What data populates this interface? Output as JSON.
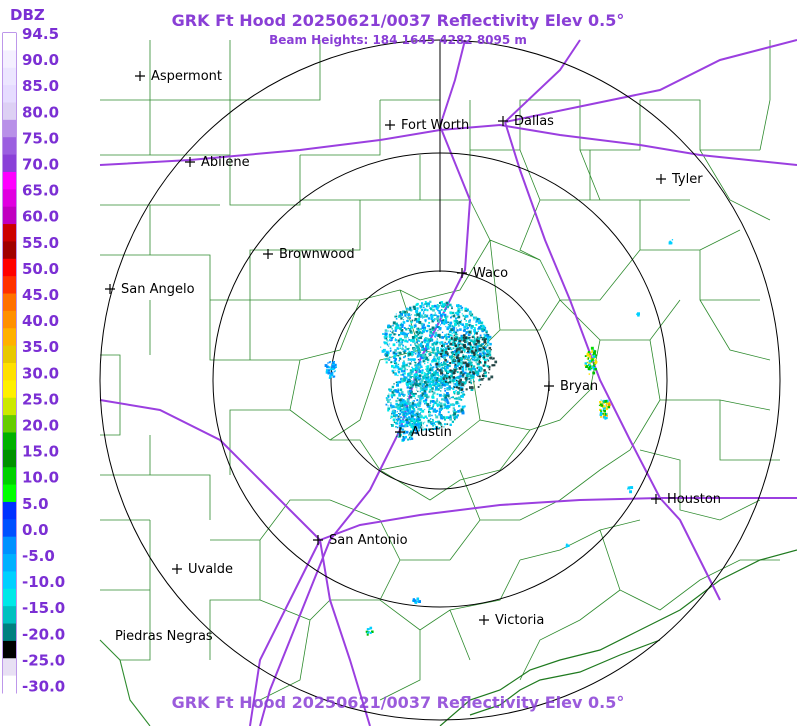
{
  "header": {
    "title": "GRK Ft Hood 20250621/0037 Reflectivity Elev 0.5°",
    "subtitle": "Beam Heights: 184 1645 4282 8095 m",
    "footer_title": "GRK Ft Hood 20250621/0037 Reflectivity Elev 0.5°"
  },
  "legend": {
    "unit": "DBZ",
    "levels": [
      "94.5",
      "90.0",
      "85.0",
      "80.0",
      "75.0",
      "70.0",
      "65.0",
      "60.0",
      "55.0",
      "50.0",
      "45.0",
      "40.0",
      "35.0",
      "30.0",
      "25.0",
      "20.0",
      "15.0",
      "10.0",
      "5.0",
      "0.0",
      "-5.0",
      "-10.0",
      "-15.0",
      "-20.0",
      "-25.0",
      "-30.0"
    ]
  },
  "cities": [
    {
      "id": "aspermont",
      "name": "Aspermont"
    },
    {
      "id": "fort-worth",
      "name": "Fort Worth"
    },
    {
      "id": "dallas",
      "name": "Dallas"
    },
    {
      "id": "abilene",
      "name": "Abilene"
    },
    {
      "id": "tyler",
      "name": "Tyler"
    },
    {
      "id": "brownwood",
      "name": "Brownwood"
    },
    {
      "id": "waco",
      "name": "Waco"
    },
    {
      "id": "san-angelo",
      "name": "San Angelo"
    },
    {
      "id": "bryan",
      "name": "Bryan"
    },
    {
      "id": "austin",
      "name": "Austin"
    },
    {
      "id": "houston",
      "name": "Houston"
    },
    {
      "id": "san-antonio",
      "name": "San Antonio"
    },
    {
      "id": "uvalde",
      "name": "Uvalde"
    },
    {
      "id": "victoria",
      "name": "Victoria"
    },
    {
      "id": "piedras-negras",
      "name": "Piedras Negras"
    }
  ],
  "colors": {
    "title": "#8a3fd6",
    "highway": "#9b3fe0",
    "county_lines": "#2e8b2e",
    "range_rings": "#000000"
  }
}
